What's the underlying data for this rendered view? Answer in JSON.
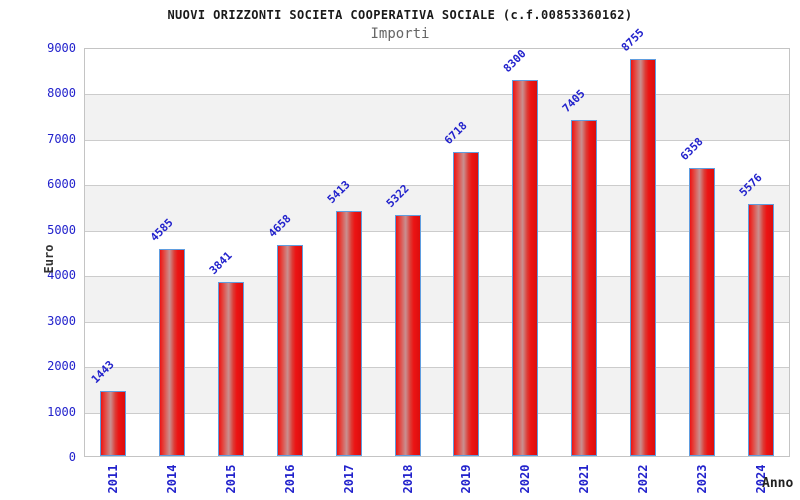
{
  "chart_data": {
    "type": "bar",
    "title": "NUOVI ORIZZONTI SOCIETA COOPERATIVA SOCIALE (c.f.00853360162)",
    "subtitle": "Importi",
    "xlabel": "Anno",
    "ylabel": "Euro",
    "categories": [
      "2011",
      "2014",
      "2015",
      "2016",
      "2017",
      "2018",
      "2019",
      "2020",
      "2021",
      "2022",
      "2023",
      "2024"
    ],
    "values": [
      1443,
      4585,
      3841,
      4658,
      5413,
      5322,
      6718,
      8300,
      7405,
      8755,
      6358,
      5576
    ],
    "yticks": [
      0,
      1000,
      2000,
      3000,
      4000,
      5000,
      6000,
      7000,
      8000,
      9000
    ],
    "ylim": [
      0,
      9000
    ],
    "grid": true,
    "legend_position": "none",
    "colors": {
      "bar_fill": "#ec1414",
      "bar_fill_highlight": "#c99090",
      "bar_border": "#5f9ddf",
      "tick_label": "#2222cc",
      "value_label": "#2222cc",
      "band_gray": "#f2f2f2",
      "gridline": "#cccccc",
      "title": "#1a1a1a",
      "subtitle": "#666666",
      "axis_title": "#333333"
    }
  }
}
